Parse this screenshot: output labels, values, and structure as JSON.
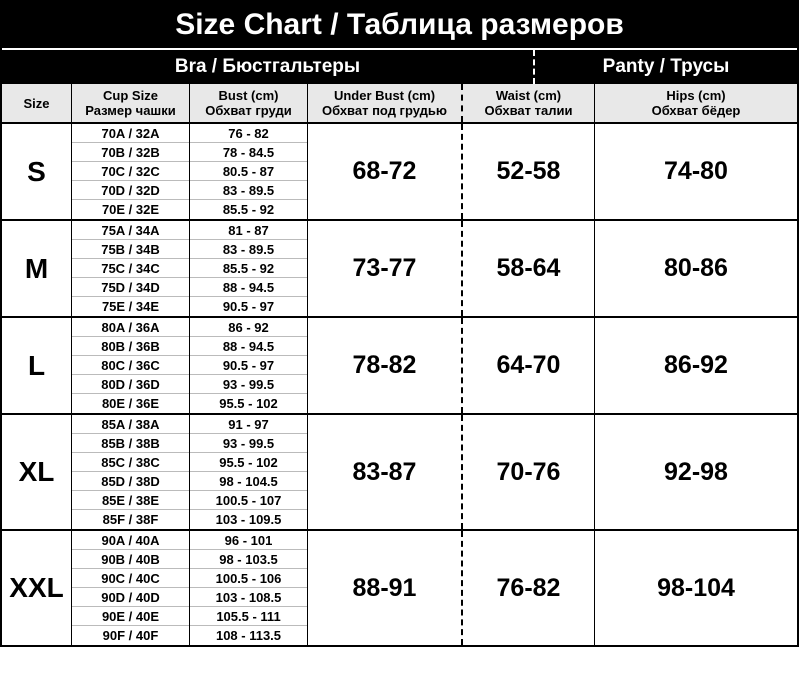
{
  "title": "Size Chart / Таблица размеров",
  "categories": {
    "bra": "Bra / Бюстгальтеры",
    "panty": "Panty / Трусы"
  },
  "headers": {
    "size": "Size",
    "cup": {
      "line1": "Cup Size",
      "line2": "Размер чашки"
    },
    "bust": {
      "line1": "Bust (cm)",
      "line2": "Обхват груди"
    },
    "ubust": {
      "line1": "Under Bust (cm)",
      "line2": "Обхват под грудью"
    },
    "waist": {
      "line1": "Waist (cm)",
      "line2": "Обхват талии"
    },
    "hips": {
      "line1": "Hips (cm)",
      "line2": "Обхват бёдер"
    }
  },
  "rows": [
    {
      "size": "S",
      "cup": [
        "70A / 32A",
        "70B / 32B",
        "70C / 32C",
        "70D / 32D",
        "70E / 32E"
      ],
      "bust": [
        "76 - 82",
        "78 - 84.5",
        "80.5 - 87",
        "83 - 89.5",
        "85.5 - 92"
      ],
      "ubust": "68-72",
      "waist": "52-58",
      "hips": "74-80"
    },
    {
      "size": "M",
      "cup": [
        "75A / 34A",
        "75B / 34B",
        "75C / 34C",
        "75D / 34D",
        "75E / 34E"
      ],
      "bust": [
        "81 - 87",
        "83 - 89.5",
        "85.5 - 92",
        "88 - 94.5",
        "90.5 - 97"
      ],
      "ubust": "73-77",
      "waist": "58-64",
      "hips": "80-86"
    },
    {
      "size": "L",
      "cup": [
        "80A / 36A",
        "80B / 36B",
        "80C / 36C",
        "80D / 36D",
        "80E / 36E"
      ],
      "bust": [
        "86 - 92",
        "88 - 94.5",
        "90.5 - 97",
        "93 - 99.5",
        "95.5 - 102"
      ],
      "ubust": "78-82",
      "waist": "64-70",
      "hips": "86-92"
    },
    {
      "size": "XL",
      "cup": [
        "85A / 38A",
        "85B / 38B",
        "85C / 38C",
        "85D / 38D",
        "85E / 38E",
        "85F / 38F"
      ],
      "bust": [
        "91 - 97",
        "93 - 99.5",
        "95.5 - 102",
        "98 - 104.5",
        "100.5 - 107",
        "103 - 109.5"
      ],
      "ubust": "83-87",
      "waist": "70-76",
      "hips": "92-98"
    },
    {
      "size": "XXL",
      "cup": [
        "90A / 40A",
        "90B / 40B",
        "90C / 40C",
        "90D / 40D",
        "90E / 40E",
        "90F / 40F"
      ],
      "bust": [
        "96 - 101",
        "98 - 103.5",
        "100.5 - 106",
        "103 - 108.5",
        "105.5 - 111",
        "108 - 113.5"
      ],
      "ubust": "88-91",
      "waist": "76-82",
      "hips": "98-104"
    }
  ],
  "colors": {
    "header_bg": "#000000",
    "header_fg": "#ffffff",
    "subheader_bg": "#e8e8e8",
    "border": "#000000",
    "sub_border": "#bbbbbb",
    "body_bg": "#ffffff"
  },
  "fonts": {
    "title_size": 30,
    "category_size": 19,
    "header_size": 13,
    "size_label_size": 28,
    "big_value_size": 25,
    "sub_size": 13
  }
}
